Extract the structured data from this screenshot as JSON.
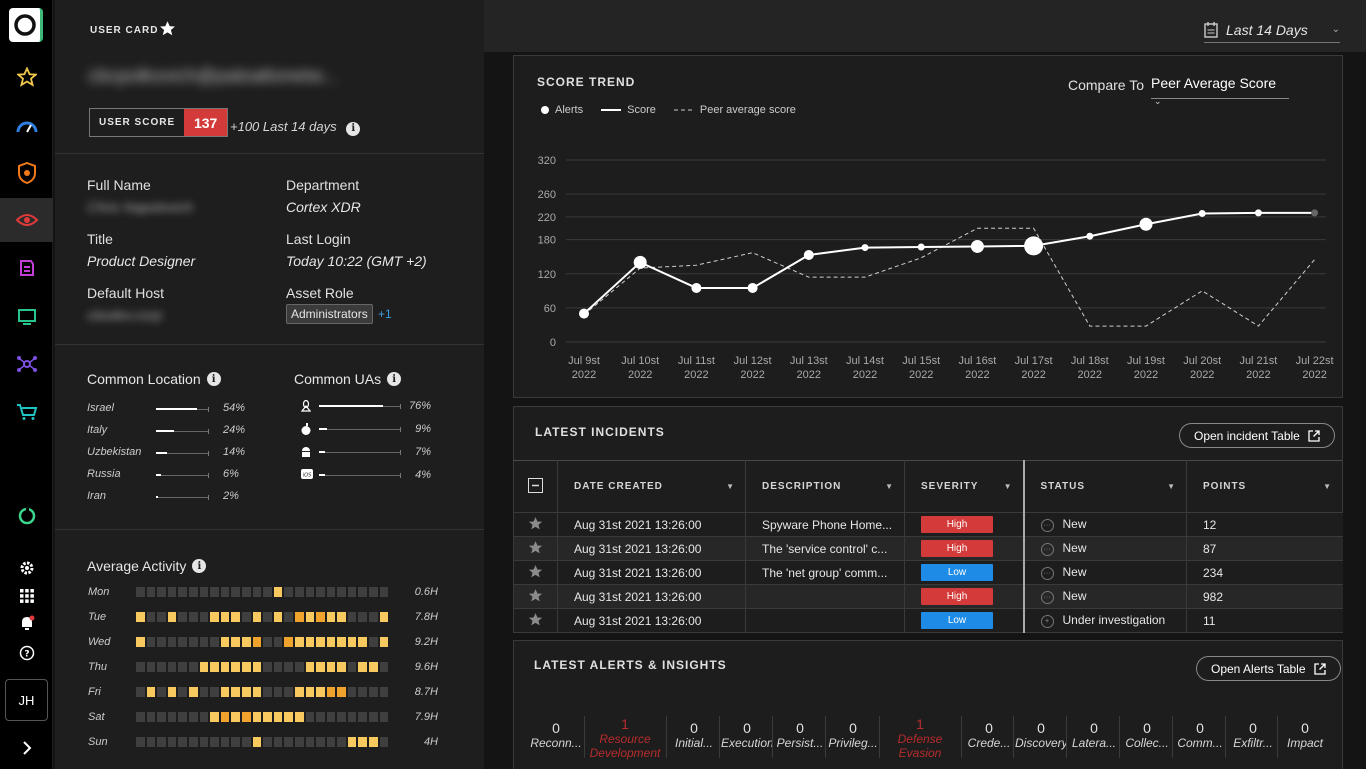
{
  "nav": {
    "items": [
      "logo-icon",
      "star-icon",
      "gauge-icon",
      "shield-icon",
      "eye-icon",
      "file-icon",
      "monitor-icon",
      "network-icon",
      "cart-icon",
      "cortex-icon",
      "gear-icon",
      "apps-grid-icon",
      "bell-icon",
      "help-icon"
    ],
    "avatar_initials": "JH",
    "expand_icon": "chevron-right-icon"
  },
  "user_card": {
    "title": "USER CARD",
    "email": "cbcpolkovich@paloaltonetw...",
    "score_label": "USER SCORE",
    "score_value": "137",
    "score_delta": "+100 Last 14 days",
    "fields": {
      "full_name_label": "Full Name",
      "full_name_value": "Chris Napolovich",
      "department_label": "Department",
      "department_value": "Cortex XDR",
      "title_label": "Title",
      "title_value": "Product Designer",
      "last_login_label": "Last Login",
      "last_login_value": "Today 10:22 (GMT +2)",
      "default_host_label": "Default Host",
      "default_host_value": "cbodev.corp",
      "asset_role_label": "Asset Role",
      "asset_role_value": "Administrators",
      "asset_role_more": "+1"
    },
    "common_location": {
      "title": "Common Location",
      "rows": [
        {
          "name": "Israel",
          "pct": "54%",
          "value": 54
        },
        {
          "name": "Italy",
          "pct": "24%",
          "value": 24
        },
        {
          "name": "Uzbekistan",
          "pct": "14%",
          "value": 14
        },
        {
          "name": "Russia",
          "pct": "6%",
          "value": 6
        },
        {
          "name": "Iran",
          "pct": "2%",
          "value": 2
        }
      ]
    },
    "common_uas": {
      "title": "Common UAs",
      "rows": [
        {
          "icon": "linux-icon",
          "pct": "76%",
          "value": 76
        },
        {
          "icon": "apple-icon",
          "pct": "9%",
          "value": 9
        },
        {
          "icon": "android-icon",
          "pct": "7%",
          "value": 7
        },
        {
          "icon": "ios-icon",
          "pct": "4%",
          "value": 4
        }
      ]
    },
    "average_activity": {
      "title": "Average Activity",
      "days": [
        {
          "day": "Mon",
          "total": "0.6H",
          "cells": [
            0,
            0,
            0,
            0,
            0,
            0,
            0,
            0,
            0,
            0,
            0,
            0,
            0,
            1,
            0,
            0,
            0,
            0,
            0,
            0,
            0,
            0,
            0,
            0
          ]
        },
        {
          "day": "Tue",
          "total": "7.8H",
          "cells": [
            1,
            0,
            0,
            1,
            0,
            0,
            0,
            1,
            1,
            1,
            0,
            1,
            0,
            1,
            0,
            2,
            1,
            2,
            1,
            1,
            0,
            0,
            0,
            1
          ]
        },
        {
          "day": "Wed",
          "total": "9.2H",
          "cells": [
            1,
            0,
            0,
            0,
            0,
            0,
            0,
            0,
            1,
            1,
            1,
            2,
            0,
            0,
            2,
            1,
            1,
            1,
            1,
            1,
            1,
            1,
            0,
            1
          ]
        },
        {
          "day": "Thu",
          "total": "9.6H",
          "cells": [
            0,
            0,
            0,
            0,
            0,
            0,
            1,
            1,
            1,
            1,
            1,
            1,
            0,
            0,
            0,
            0,
            1,
            1,
            1,
            1,
            0,
            1,
            1,
            0
          ]
        },
        {
          "day": "Fri",
          "total": "8.7H",
          "cells": [
            0,
            1,
            0,
            1,
            0,
            1,
            0,
            0,
            1,
            1,
            1,
            1,
            0,
            0,
            0,
            1,
            1,
            1,
            2,
            2,
            0,
            0,
            0,
            0
          ]
        },
        {
          "day": "Sat",
          "total": "7.9H",
          "cells": [
            0,
            0,
            0,
            0,
            0,
            0,
            0,
            1,
            2,
            1,
            2,
            1,
            1,
            1,
            1,
            1,
            0,
            0,
            0,
            0,
            0,
            0,
            0,
            0
          ]
        },
        {
          "day": "Sun",
          "total": "4H",
          "cells": [
            0,
            0,
            0,
            0,
            0,
            0,
            0,
            0,
            0,
            0,
            0,
            1,
            0,
            0,
            0,
            0,
            0,
            0,
            0,
            0,
            1,
            1,
            1,
            0
          ]
        }
      ]
    }
  },
  "date_range": {
    "label": "Last 14 Days",
    "icon": "calendar-icon"
  },
  "score_trend": {
    "title": "SCORE TREND",
    "compare_label": "Compare To",
    "compare_value": "Peer Average Score",
    "legend": {
      "alerts": "Alerts",
      "score": "Score",
      "peer": "Peer average score"
    }
  },
  "chart_data": {
    "type": "line",
    "x": [
      "Jul 9st 2022",
      "Jul 10st 2022",
      "Jul 11st 2022",
      "Jul 12st 2022",
      "Jul 13st 2022",
      "Jul 14st 2022",
      "Jul 15st 2022",
      "Jul 16st 2022",
      "Jul 17st 2022",
      "Jul 18st 2022",
      "Jul 19st 2022",
      "Jul 20st 2022",
      "Jul 21st 2022",
      "Jul 22st 2022"
    ],
    "x_tick_top": [
      "Jul 9st",
      "Jul 10st",
      "Jul 11st",
      "Jul 12st",
      "Jul 13st",
      "Jul 14st",
      "Jul 15st",
      "Jul 16st",
      "Jul 17st",
      "Jul 18st",
      "Jul 19st",
      "Jul 20st",
      "Jul 21st",
      "Jul 22st"
    ],
    "x_tick_bottom": [
      "2022",
      "2022",
      "2022",
      "2022",
      "2022",
      "2022",
      "2022",
      "2022",
      "2022",
      "2022",
      "2022",
      "2022",
      "2022",
      "2022"
    ],
    "series": [
      {
        "name": "Score",
        "values": [
          50,
          140,
          95,
          95,
          153,
          166,
          167,
          168,
          169,
          186,
          207,
          226,
          227,
          227
        ]
      },
      {
        "name": "Peer average score",
        "values": [
          48,
          130,
          135,
          157,
          114,
          114,
          148,
          200,
          200,
          28,
          28,
          90,
          28,
          145
        ]
      }
    ],
    "alerts_size": [
      2,
      3,
      2,
      2,
      2,
      1,
      1,
      3,
      4,
      1,
      3,
      1,
      1,
      1
    ],
    "yticks": [
      0,
      60,
      120,
      180,
      220,
      260,
      320
    ],
    "ylim": [
      0,
      320
    ],
    "grid": true,
    "legend": "top-left"
  },
  "incidents": {
    "title": "LATEST INCIDENTS",
    "open_button": "Open incident Table",
    "columns": [
      "DATE CREATED",
      "DESCRIPTION",
      "SEVERITY",
      "STATUS",
      "POINTS"
    ],
    "rows": [
      {
        "date": "Aug 31st 2021 13:26:00",
        "desc": "Spyware Phone Home...",
        "severity": "High",
        "status": "New",
        "points": "12"
      },
      {
        "date": "Aug 31st 2021 13:26:00",
        "desc": "The 'service control' c...",
        "severity": "High",
        "status": "New",
        "points": "87"
      },
      {
        "date": "Aug 31st 2021 13:26:00",
        "desc": "The 'net group' comm...",
        "severity": "Low",
        "status": "New",
        "points": "234"
      },
      {
        "date": "Aug 31st 2021 13:26:00",
        "desc": "",
        "severity": "High",
        "status": "New",
        "points": "982"
      },
      {
        "date": "Aug 31st 2021 13:26:00",
        "desc": "",
        "severity": "Low",
        "status": "Under investigation",
        "points": "11"
      }
    ]
  },
  "alerts": {
    "title": "LATEST ALERTS & INSIGHTS",
    "open_button": "Open Alerts Table",
    "categories": [
      {
        "count": "0",
        "label": "Reconn...",
        "label2": "",
        "red": false
      },
      {
        "count": "1",
        "label": "Resource",
        "label2": "Development",
        "red": true
      },
      {
        "count": "0",
        "label": "Initial...",
        "label2": "",
        "red": false
      },
      {
        "count": "0",
        "label": "Execution",
        "label2": "",
        "red": false
      },
      {
        "count": "0",
        "label": "Persist...",
        "label2": "",
        "red": false
      },
      {
        "count": "0",
        "label": "Privileg...",
        "label2": "",
        "red": false
      },
      {
        "count": "1",
        "label": "Defense",
        "label2": "Evasion",
        "red": true
      },
      {
        "count": "0",
        "label": "Crede...",
        "label2": "",
        "red": false
      },
      {
        "count": "0",
        "label": "Discovery",
        "label2": "",
        "red": false
      },
      {
        "count": "0",
        "label": "Latera...",
        "label2": "",
        "red": false
      },
      {
        "count": "0",
        "label": "Collec...",
        "label2": "",
        "red": false
      },
      {
        "count": "0",
        "label": "Comm...",
        "label2": "",
        "red": false
      },
      {
        "count": "0",
        "label": "Exfiltr...",
        "label2": "",
        "red": false
      },
      {
        "count": "0",
        "label": "Impact",
        "label2": "",
        "red": false
      }
    ]
  },
  "colors": {
    "score_red": "#d33a3a",
    "sev_high": "#d33a3a",
    "sev_low": "#1e8ce6",
    "activity_light": "#f7c95e",
    "activity_dark": "#efa22c"
  }
}
